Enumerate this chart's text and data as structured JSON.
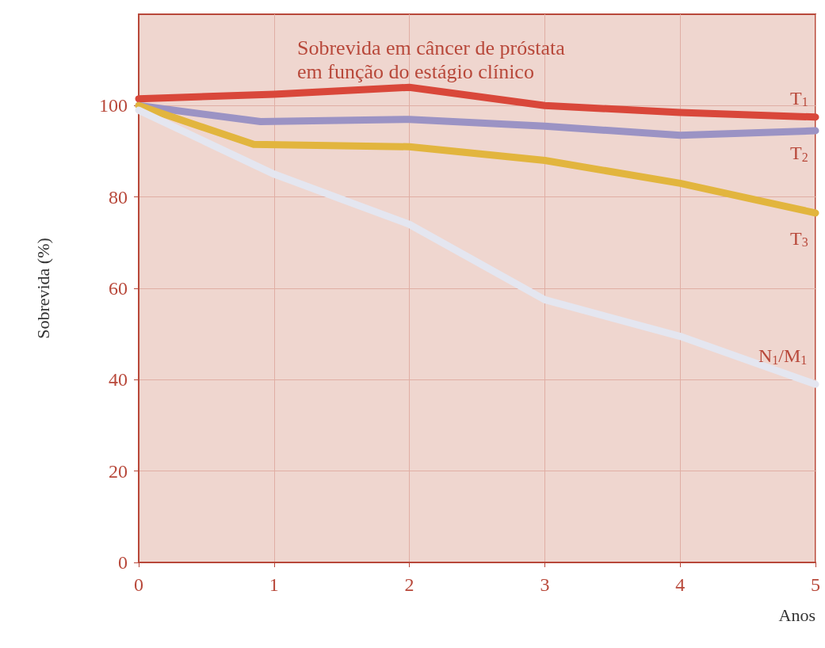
{
  "chart_data": {
    "type": "line",
    "title": "Sobrevida em câncer de próstata\nem função do estágio clínico",
    "xlabel": "Anos",
    "ylabel": "Sobrevida (%)",
    "x": [
      0,
      1,
      2,
      3,
      4,
      5
    ],
    "series": [
      {
        "name": "T$_{1}$",
        "color": "#d9473a",
        "values": [
          101.5,
          102.5,
          104,
          100,
          98.5,
          97.5
        ]
      },
      {
        "name": "T$_{2}$",
        "color": "#9b93c4",
        "x": [
          0,
          0.9,
          2,
          3,
          4,
          5
        ],
        "values": [
          100,
          96.5,
          97,
          95.5,
          93.5,
          94.5
        ]
      },
      {
        "name": "T$_{3}$",
        "color": "#e2b53e",
        "x": [
          0,
          0.85,
          2,
          3,
          4,
          5
        ],
        "values": [
          100,
          91.5,
          91,
          88,
          83,
          76.5
        ]
      },
      {
        "name": "N$_{1}$/M$_{1}$",
        "color": "#e4e6f0",
        "values": [
          99,
          85,
          74,
          57.5,
          49.5,
          39
        ]
      }
    ],
    "xlim": [
      0,
      5
    ],
    "xticks": [
      0,
      1,
      2,
      3,
      4,
      5
    ],
    "ylim": [
      0,
      120
    ],
    "yticks": [
      0,
      20,
      40,
      60,
      80,
      100
    ],
    "grid": true,
    "legend": false,
    "marker": "none",
    "line_style": "solid"
  }
}
